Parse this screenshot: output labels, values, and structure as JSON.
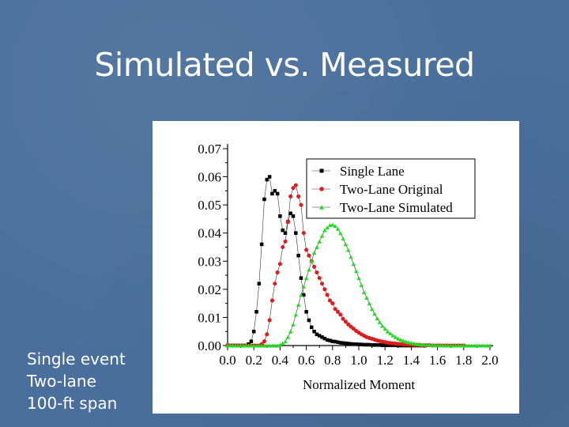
{
  "slide": {
    "title": "Simulated vs. Measured",
    "caption_lines": [
      "Single event",
      "Two-lane",
      "100-ft span"
    ]
  },
  "chart_data": {
    "type": "scatter",
    "xlabel": "Normalized Moment",
    "ylabel": "",
    "xlim": [
      0.0,
      2.0
    ],
    "ylim": [
      0.0,
      0.07
    ],
    "xticks": [
      "0.0",
      "0.2",
      "0.4",
      "0.6",
      "0.8",
      "1.0",
      "1.2",
      "1.4",
      "1.6",
      "1.8",
      "2.0"
    ],
    "yticks": [
      "0.00",
      "0.01",
      "0.02",
      "0.03",
      "0.04",
      "0.05",
      "0.06",
      "0.07"
    ],
    "legend_position": "top-right",
    "series": [
      {
        "name": "Single Lane",
        "color": "#000000",
        "marker": "square",
        "x": [
          0.0,
          0.02,
          0.04,
          0.06,
          0.08,
          0.1,
          0.12,
          0.14,
          0.16,
          0.18,
          0.2,
          0.22,
          0.24,
          0.26,
          0.28,
          0.3,
          0.32,
          0.34,
          0.36,
          0.38,
          0.4,
          0.42,
          0.44,
          0.46,
          0.48,
          0.5,
          0.52,
          0.54,
          0.56,
          0.58,
          0.6,
          0.62,
          0.64,
          0.66,
          0.68,
          0.7,
          0.72,
          0.74,
          0.76,
          0.78,
          0.8,
          0.82,
          0.84,
          0.86,
          0.88,
          0.9,
          0.92,
          0.94,
          0.96,
          0.98,
          1.0,
          1.02,
          1.04,
          1.06,
          1.08,
          1.1,
          1.12,
          1.14,
          1.16,
          1.18,
          1.2,
          1.22,
          1.24,
          1.26,
          1.28,
          1.3,
          1.32,
          1.34,
          1.36,
          1.38,
          1.4,
          1.42,
          1.44,
          1.46,
          1.48,
          1.5
        ],
        "y": [
          0.0,
          0.0,
          0.0,
          0.0,
          0.0,
          0.0,
          0.0,
          0.0,
          0.0005,
          0.0015,
          0.005,
          0.012,
          0.022,
          0.036,
          0.052,
          0.059,
          0.06,
          0.054,
          0.055,
          0.054,
          0.046,
          0.041,
          0.04,
          0.044,
          0.047,
          0.046,
          0.04,
          0.032,
          0.024,
          0.018,
          0.012,
          0.009,
          0.0065,
          0.005,
          0.004,
          0.0035,
          0.003,
          0.0025,
          0.002,
          0.0018,
          0.0015,
          0.0014,
          0.0012,
          0.001,
          0.0009,
          0.0008,
          0.0007,
          0.0006,
          0.0005,
          0.0005,
          0.0004,
          0.0004,
          0.0003,
          0.0003,
          0.0003,
          0.0002,
          0.0002,
          0.0002,
          0.0002,
          0.0001,
          0.0001,
          0.0001,
          0.0001,
          0.0001,
          0.0001,
          0.0,
          0.0,
          0.0,
          0.0,
          0.0,
          0.0,
          0.0,
          0.0,
          0.0,
          0.0,
          0.0
        ]
      },
      {
        "name": "Two-Lane Original",
        "color": "#e01b1b",
        "marker": "circle",
        "x": [
          0.0,
          0.02,
          0.04,
          0.06,
          0.08,
          0.1,
          0.12,
          0.14,
          0.16,
          0.18,
          0.2,
          0.22,
          0.24,
          0.26,
          0.28,
          0.3,
          0.32,
          0.34,
          0.36,
          0.38,
          0.4,
          0.42,
          0.44,
          0.46,
          0.48,
          0.5,
          0.52,
          0.54,
          0.56,
          0.58,
          0.6,
          0.62,
          0.64,
          0.66,
          0.68,
          0.7,
          0.72,
          0.74,
          0.76,
          0.78,
          0.8,
          0.82,
          0.84,
          0.86,
          0.88,
          0.9,
          0.92,
          0.94,
          0.96,
          0.98,
          1.0,
          1.02,
          1.04,
          1.06,
          1.08,
          1.1,
          1.12,
          1.14,
          1.16,
          1.18,
          1.2,
          1.22,
          1.24,
          1.26,
          1.28,
          1.3,
          1.32,
          1.34,
          1.36,
          1.38,
          1.4,
          1.42,
          1.44,
          1.46,
          1.48,
          1.5,
          1.52,
          1.54,
          1.56,
          1.58,
          1.6,
          1.62,
          1.64,
          1.66,
          1.68,
          1.7,
          1.72,
          1.74,
          1.76,
          1.78,
          1.8
        ],
        "y": [
          0.0,
          0.0,
          0.0,
          0.0,
          0.0,
          0.0,
          0.0,
          0.0,
          0.0,
          0.0,
          0.0,
          0.0,
          0.0,
          0.0005,
          0.0015,
          0.004,
          0.009,
          0.016,
          0.022,
          0.026,
          0.029,
          0.035,
          0.037,
          0.044,
          0.053,
          0.056,
          0.057,
          0.053,
          0.05,
          0.04,
          0.034,
          0.032,
          0.03,
          0.028,
          0.026,
          0.024,
          0.022,
          0.02,
          0.018,
          0.016,
          0.015,
          0.013,
          0.012,
          0.011,
          0.0095,
          0.0085,
          0.0075,
          0.0067,
          0.006,
          0.0052,
          0.0046,
          0.004,
          0.0035,
          0.003,
          0.0027,
          0.0024,
          0.0021,
          0.0018,
          0.0016,
          0.0014,
          0.0012,
          0.001,
          0.0009,
          0.0008,
          0.0007,
          0.0006,
          0.0005,
          0.0004,
          0.0004,
          0.0003,
          0.0003,
          0.0002,
          0.0002,
          0.0002,
          0.0001,
          0.0001,
          0.0001,
          0.0001,
          0.0,
          0.0,
          0.0,
          0.0,
          0.0,
          0.0,
          0.0,
          0.0,
          0.0,
          0.0,
          0.0,
          0.0,
          0.0
        ]
      },
      {
        "name": "Two-Lane Simulated",
        "color": "#22dd22",
        "marker": "triangle",
        "x": [
          0.0,
          0.02,
          0.04,
          0.06,
          0.08,
          0.1,
          0.12,
          0.14,
          0.16,
          0.18,
          0.2,
          0.22,
          0.24,
          0.26,
          0.28,
          0.3,
          0.32,
          0.34,
          0.36,
          0.38,
          0.4,
          0.42,
          0.44,
          0.46,
          0.48,
          0.5,
          0.52,
          0.54,
          0.56,
          0.58,
          0.6,
          0.62,
          0.64,
          0.66,
          0.68,
          0.7,
          0.72,
          0.74,
          0.76,
          0.78,
          0.8,
          0.82,
          0.84,
          0.86,
          0.88,
          0.9,
          0.92,
          0.94,
          0.96,
          0.98,
          1.0,
          1.02,
          1.04,
          1.06,
          1.08,
          1.1,
          1.12,
          1.14,
          1.16,
          1.18,
          1.2,
          1.22,
          1.24,
          1.26,
          1.28,
          1.3,
          1.32,
          1.34,
          1.36,
          1.38,
          1.4,
          1.42,
          1.44,
          1.46,
          1.48,
          1.5,
          1.52,
          1.54,
          1.56,
          1.58,
          1.6,
          1.62,
          1.64,
          1.66,
          1.68,
          1.7,
          1.72,
          1.74,
          1.76,
          1.78,
          1.8,
          1.82,
          1.84,
          1.86,
          1.88,
          1.9,
          1.92,
          1.94,
          1.96,
          1.98,
          2.0
        ],
        "y": [
          0.0,
          0.0,
          0.0,
          0.0,
          0.0,
          0.0,
          0.0,
          0.0,
          0.0,
          0.0,
          0.0,
          0.0,
          0.0,
          0.0,
          0.0,
          0.0,
          0.0,
          0.0,
          0.0,
          0.0,
          0.0003,
          0.0008,
          0.0015,
          0.003,
          0.005,
          0.0075,
          0.011,
          0.0145,
          0.018,
          0.021,
          0.024,
          0.027,
          0.03,
          0.033,
          0.035,
          0.037,
          0.039,
          0.041,
          0.042,
          0.0428,
          0.043,
          0.0425,
          0.0415,
          0.04,
          0.038,
          0.036,
          0.034,
          0.0315,
          0.029,
          0.0265,
          0.024,
          0.0215,
          0.019,
          0.017,
          0.015,
          0.013,
          0.0113,
          0.0097,
          0.0083,
          0.007,
          0.006,
          0.005,
          0.0043,
          0.0036,
          0.003,
          0.0025,
          0.0021,
          0.0017,
          0.0014,
          0.0012,
          0.001,
          0.0008,
          0.0006,
          0.0005,
          0.0004,
          0.0003,
          0.0003,
          0.0002,
          0.0002,
          0.0001,
          0.0001,
          0.0001,
          0.0001,
          0.0,
          0.0,
          0.0,
          0.0,
          0.0,
          0.0,
          0.0,
          0.0,
          0.0,
          0.0,
          0.0,
          0.0,
          0.0,
          0.0,
          0.0,
          0.0,
          0.0,
          0.0
        ]
      }
    ]
  }
}
